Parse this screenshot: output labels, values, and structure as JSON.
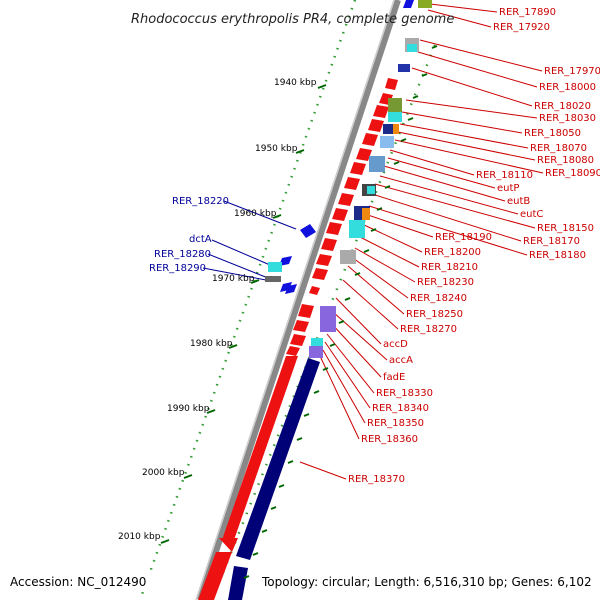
{
  "title": "Rhodococcus erythropolis PR4, complete genome",
  "footer": {
    "accession": "Accession: NC_012490",
    "topology": "Topology: circular; Length: 6,516,310 bp; Genes: 6,102"
  },
  "ticks": [
    "1940 kbp",
    "1950 kbp",
    "1960 kbp",
    "1970 kbp",
    "1980 kbp",
    "1990 kbp",
    "2000 kbp",
    "2010 kbp"
  ],
  "right_labels": [
    "RER_17890",
    "RER_17920",
    "RER_17970",
    "RER_18000",
    "RER_18020",
    "RER_18030",
    "RER_18050",
    "RER_18070",
    "RER_18080",
    "RER_18090",
    "RER_18110",
    "eutP",
    "eutB",
    "eutC",
    "RER_18150",
    "RER_18170",
    "RER_18180",
    "RER_18190",
    "RER_18200",
    "RER_18210",
    "RER_18230",
    "RER_18240",
    "RER_18250",
    "RER_18270",
    "accD",
    "accA",
    "fadE",
    "RER_18330",
    "RER_18340",
    "RER_18350",
    "RER_18360",
    "RER_18370"
  ],
  "left_labels": [
    "RER_18220",
    "dctA",
    "RER_18280",
    "RER_18290"
  ],
  "colors": {
    "forward": "#ee1111",
    "reverse": "#1111dd",
    "backbone": "#888888",
    "gc_dots": "#339933",
    "label_right": "#cc0000",
    "label_left": "#000099",
    "long_bar": "#000077"
  }
}
